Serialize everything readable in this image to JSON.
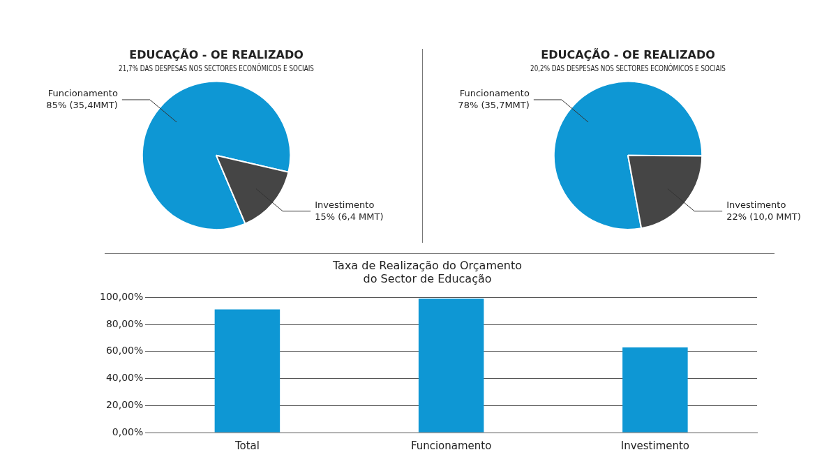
{
  "chart_data": [
    {
      "type": "pie",
      "title": "EDUCAÇÃO - OE REALIZADO",
      "subtitle": "21,7% DAS DESPESAS NOS SECTORES ECONÓMICOS E SOCIAIS",
      "categories": [
        "Funcionamento",
        "Investimento"
      ],
      "values": [
        85,
        15
      ],
      "value_labels": [
        "85% (35,4MMT)",
        "15% (6,4 MMT)"
      ],
      "colors": [
        "#0e97d4",
        "#454545"
      ],
      "legend": false
    },
    {
      "type": "pie",
      "title": "EDUCAÇÃO - OE REALIZADO",
      "subtitle": "20,2% DAS DESPESAS NOS SECTORES ECONÓMICOS E SOCIAIS",
      "categories": [
        "Funcionamento",
        "Investimento"
      ],
      "values": [
        78,
        22
      ],
      "value_labels": [
        "78% (35,7MMT)",
        "22% (10,0 MMT)"
      ],
      "colors": [
        "#0e97d4",
        "#454545"
      ],
      "legend": false
    },
    {
      "type": "bar",
      "title": "Taxa de Realização do Orçamento\ndo Sector de Educação",
      "categories": [
        "Total",
        "Funcionamento",
        "Investimento"
      ],
      "values": [
        91.2,
        99.2,
        63.0
      ],
      "color": "#0e97d4",
      "ylim": [
        0,
        100
      ],
      "yticks": [
        {
          "value": 0,
          "label": "0,00%"
        },
        {
          "value": 20,
          "label": "20,00%"
        },
        {
          "value": 40,
          "label": "40,00%"
        },
        {
          "value": 60,
          "label": "60,00%"
        },
        {
          "value": 80,
          "label": "80,00%"
        },
        {
          "value": 100,
          "label": "100,00%"
        }
      ],
      "grid": "y",
      "legend": false
    }
  ]
}
